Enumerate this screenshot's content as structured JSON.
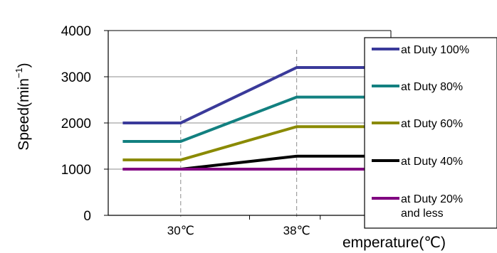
{
  "chart_data": {
    "type": "line",
    "ylabel_base": "Speed(min",
    "ylabel_sup": "−1",
    "ylabel_close": ")",
    "xlabel": "emperature(℃)",
    "ylim": [
      0,
      4000
    ],
    "y_ticks": [
      "0",
      "1000",
      "2000",
      "3000",
      "4000"
    ],
    "y_tick_values": [
      0,
      1000,
      2000,
      3000,
      4000
    ],
    "x_ticks": [
      "30℃",
      "38℃"
    ],
    "x_tick_values": [
      30,
      38
    ],
    "xlim": [
      25,
      44.5
    ],
    "grid": "horizontal",
    "legend_position": "right",
    "series": [
      {
        "name": "at Duty 100%",
        "color": "#3a3a9a",
        "x": [
          26,
          30,
          38,
          44.5
        ],
        "y": [
          2000,
          2000,
          3200,
          3200
        ]
      },
      {
        "name": "at Duty 80%",
        "color": "#128080",
        "x": [
          26,
          30,
          38,
          44.5
        ],
        "y": [
          1600,
          1600,
          2560,
          2560
        ]
      },
      {
        "name": "at Duty 60%",
        "color": "#8a8a00",
        "x": [
          26,
          30,
          38,
          44.5
        ],
        "y": [
          1200,
          1200,
          1920,
          1920
        ]
      },
      {
        "name": "at Duty 40%",
        "color": "#000000",
        "x": [
          26,
          30,
          38,
          44.5
        ],
        "y": [
          1000,
          1000,
          1280,
          1280
        ]
      },
      {
        "name": "at Duty 20%",
        "name_line2": "and less",
        "color": "#800080",
        "x": [
          26,
          30,
          38,
          44.5
        ],
        "y": [
          1000,
          1000,
          1000,
          1000
        ]
      }
    ]
  }
}
